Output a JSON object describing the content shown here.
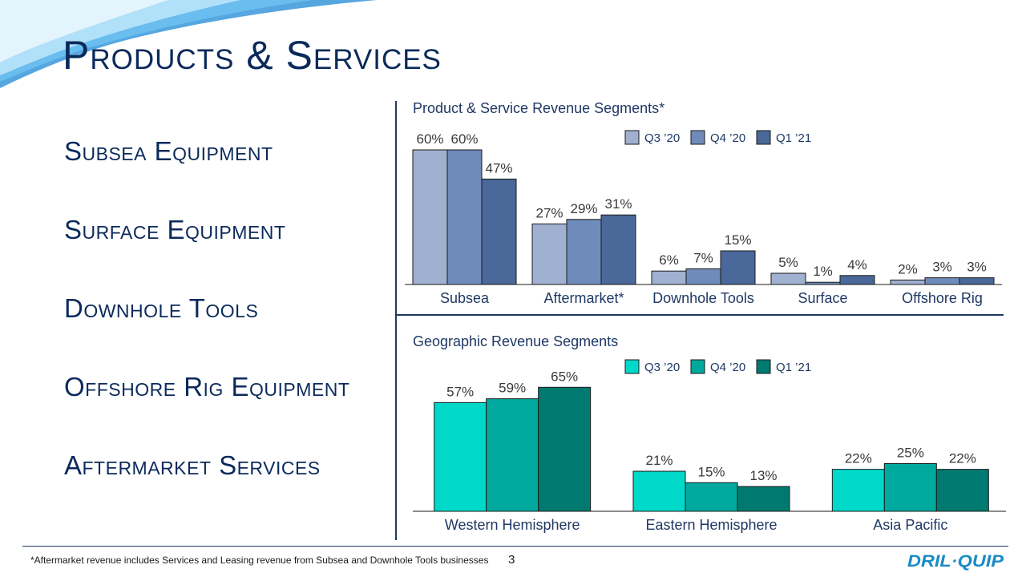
{
  "title": "Products & Services",
  "products": [
    "Subsea Equipment",
    "Surface Equipment",
    "Downhole Tools",
    "Offshore Rig Equipment",
    "Aftermarket Services"
  ],
  "footnote": "*Aftermarket revenue includes Services and Leasing revenue from Subsea and Downhole Tools businesses",
  "page_number": "3",
  "logo_text": "DRIL-QUIP",
  "colors": {
    "title": "#0b2a5b",
    "product_series": [
      "#9fb0d0",
      "#6f8bba",
      "#4a6899"
    ],
    "geo_series": [
      "#00d9c9",
      "#00a99d",
      "#007a70"
    ],
    "logo": "#1a8bc7"
  },
  "chart_data": [
    {
      "type": "bar",
      "title": "Product & Service Revenue Segments*",
      "categories": [
        "Subsea",
        "Aftermarket*",
        "Downhole Tools",
        "Surface",
        "Offshore Rig"
      ],
      "series": [
        {
          "name": "Q3 ’20",
          "values": [
            60,
            27,
            6,
            5,
            2
          ]
        },
        {
          "name": "Q4 ’20",
          "values": [
            60,
            29,
            7,
            1,
            3
          ]
        },
        {
          "name": "Q1 ’21",
          "values": [
            47,
            31,
            15,
            4,
            3
          ]
        }
      ],
      "unit": "%",
      "legend": "top-right",
      "grid": false
    },
    {
      "type": "bar",
      "title": "Geographic Revenue Segments",
      "categories": [
        "Western Hemisphere",
        "Eastern Hemisphere",
        "Asia Pacific"
      ],
      "series": [
        {
          "name": "Q3 ’20",
          "values": [
            57,
            21,
            22
          ]
        },
        {
          "name": "Q4 ’20",
          "values": [
            59,
            15,
            25
          ]
        },
        {
          "name": "Q1 ’21",
          "values": [
            65,
            13,
            22
          ]
        }
      ],
      "unit": "%",
      "legend": "top-right",
      "grid": false
    }
  ]
}
